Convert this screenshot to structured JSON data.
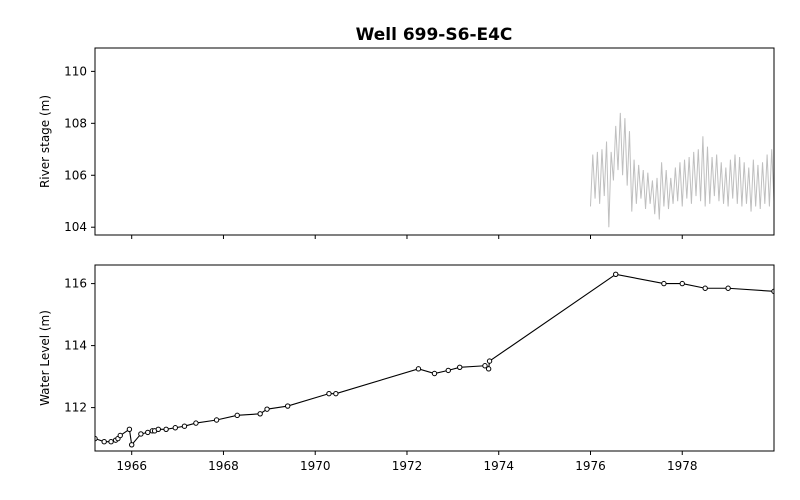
{
  "chart_data": {
    "title": "Well 699-S6-E4C",
    "type": "line",
    "x_ticks": [
      "1966",
      "1968",
      "1970",
      "1972",
      "1974",
      "1976",
      "1978"
    ],
    "panels": [
      {
        "id": "river",
        "ylabel": "River stage (m)",
        "ylim": [
          103.7,
          110.9
        ],
        "yticks": [
          "104",
          "106",
          "108",
          "110"
        ],
        "xlim": [
          1965.2,
          1980.0
        ],
        "series": [
          {
            "style": "line",
            "color": "#bfbfbf",
            "x": [
              1976.0,
              1976.05,
              1976.1,
              1976.15,
              1976.2,
              1976.25,
              1976.3,
              1976.35,
              1976.4,
              1976.45,
              1976.5,
              1976.55,
              1976.6,
              1976.65,
              1976.7,
              1976.75,
              1976.8,
              1976.85,
              1976.9,
              1976.95,
              1977.0,
              1977.05,
              1977.1,
              1977.15,
              1977.2,
              1977.25,
              1977.3,
              1977.35,
              1977.4,
              1977.45,
              1977.5,
              1977.55,
              1977.6,
              1977.65,
              1977.7,
              1977.75,
              1977.8,
              1977.85,
              1977.9,
              1977.95,
              1978.0,
              1978.05,
              1978.1,
              1978.15,
              1978.2,
              1978.25,
              1978.3,
              1978.35,
              1978.4,
              1978.45,
              1978.5,
              1978.55,
              1978.6,
              1978.65,
              1978.7,
              1978.75,
              1978.8,
              1978.85,
              1978.9,
              1978.95,
              1979.0,
              1979.05,
              1979.1,
              1979.15,
              1979.2,
              1979.25,
              1979.3,
              1979.35,
              1979.4,
              1979.45,
              1979.5,
              1979.55,
              1979.6,
              1979.65,
              1979.7,
              1979.75,
              1979.8,
              1979.85,
              1979.9,
              1979.95,
              1980.0
            ],
            "y": [
              104.8,
              106.8,
              105.1,
              106.9,
              104.9,
              107.0,
              105.2,
              107.3,
              104.0,
              106.9,
              105.8,
              107.9,
              106.2,
              108.4,
              106.0,
              108.2,
              105.6,
              107.7,
              104.6,
              106.6,
              104.9,
              106.4,
              105.1,
              106.2,
              104.7,
              106.1,
              104.9,
              105.8,
              104.5,
              105.9,
              104.3,
              106.5,
              104.8,
              106.2,
              104.7,
              105.9,
              104.9,
              106.3,
              105.0,
              106.5,
              104.8,
              106.6,
              105.1,
              106.7,
              104.9,
              106.9,
              105.2,
              107.0,
              105.0,
              107.5,
              104.8,
              107.1,
              104.9,
              106.7,
              105.2,
              106.8,
              105.0,
              106.5,
              104.9,
              106.3,
              104.8,
              106.6,
              105.1,
              106.8,
              104.9,
              106.7,
              104.8,
              106.5,
              104.9,
              106.3,
              104.6,
              106.6,
              104.8,
              106.4,
              104.7,
              106.5,
              104.9,
              106.8,
              104.8,
              107.0,
              105.0
            ]
          }
        ]
      },
      {
        "id": "well",
        "ylabel": "Water Level (m)",
        "ylim": [
          110.6,
          116.6
        ],
        "yticks": [
          "112",
          "114",
          "116"
        ],
        "xlim": [
          1965.2,
          1980.0
        ],
        "series": [
          {
            "style": "line-markers",
            "color": "#000000",
            "x": [
              1965.2,
              1965.4,
              1965.55,
              1965.65,
              1965.7,
              1965.75,
              1965.95,
              1966.0,
              1966.2,
              1966.35,
              1966.45,
              1966.5,
              1966.58,
              1966.75,
              1966.95,
              1967.15,
              1967.4,
              1967.85,
              1968.3,
              1968.8,
              1968.95,
              1969.4,
              1970.3,
              1970.45,
              1972.25,
              1972.6,
              1972.9,
              1973.15,
              1973.7,
              1973.78,
              1973.8,
              1976.55,
              1977.6,
              1978.0,
              1978.5,
              1979.0,
              1980.0
            ],
            "y": [
              111.0,
              110.9,
              110.9,
              110.95,
              111.0,
              111.1,
              111.3,
              110.8,
              111.15,
              111.2,
              111.25,
              111.25,
              111.3,
              111.3,
              111.35,
              111.4,
              111.5,
              111.6,
              111.75,
              111.8,
              111.95,
              112.05,
              112.45,
              112.45,
              113.25,
              113.1,
              113.2,
              113.3,
              113.35,
              113.25,
              113.5,
              116.3,
              116.0,
              116.0,
              115.85,
              115.85,
              115.75
            ]
          }
        ]
      }
    ]
  }
}
